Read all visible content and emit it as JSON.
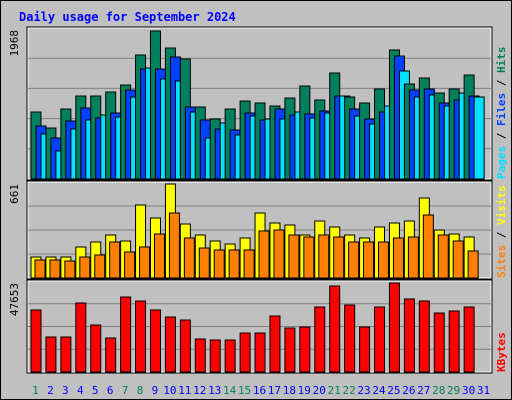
{
  "title": "Daily usage for September 2024",
  "colors": {
    "hits": "#00805c",
    "files": "#0040ff",
    "pages": "#00e0ff",
    "visits": "#ffff00",
    "sites": "#ff8000",
    "kbytes": "#ff0000",
    "weekend_day": "#00805c",
    "weekday": "#0000ff",
    "plot_bg": "#c0c0c0",
    "title": "#0000ff"
  },
  "chart_data": [
    {
      "type": "bar",
      "panel": "hits-files-pages",
      "ymax": 1968,
      "ytick_label": "1968",
      "legend": [
        "Pages",
        "Files",
        "Hits"
      ],
      "categories": [
        "1",
        "2",
        "3",
        "4",
        "5",
        "6",
        "7",
        "8",
        "9",
        "10",
        "11",
        "12",
        "13",
        "14",
        "15",
        "16",
        "17",
        "18",
        "19",
        "20",
        "21",
        "22",
        "23",
        "24",
        "25",
        "26",
        "27",
        "28",
        "29",
        "30"
      ],
      "series": [
        {
          "name": "Hits",
          "values": [
            890,
            680,
            930,
            1090,
            1090,
            1150,
            1240,
            1640,
            1960,
            1730,
            1580,
            950,
            790,
            920,
            1030,
            1010,
            970,
            1070,
            1230,
            1050,
            1400,
            1080,
            1010,
            1190,
            1710,
            1260,
            1330,
            1130,
            1190,
            1380
          ]
        },
        {
          "name": "Files",
          "values": [
            700,
            540,
            760,
            940,
            800,
            870,
            1180,
            1450,
            1450,
            1610,
            950,
            780,
            660,
            650,
            870,
            780,
            920,
            850,
            860,
            900,
            1100,
            920,
            790,
            890,
            1630,
            1170,
            1190,
            1010,
            1040,
            1090
          ]
        },
        {
          "name": "Pages",
          "values": [
            600,
            370,
            660,
            780,
            840,
            820,
            1080,
            1460,
            1320,
            1290,
            890,
            540,
            740,
            580,
            830,
            790,
            790,
            890,
            810,
            870,
            1100,
            830,
            730,
            960,
            1420,
            1080,
            1110,
            960,
            1130,
            1080
          ]
        }
      ]
    },
    {
      "type": "bar",
      "panel": "visits-sites",
      "ymax": 661,
      "ytick_label": "661",
      "legend": [
        "Sites",
        "Visits"
      ],
      "categories": [
        "1",
        "2",
        "3",
        "4",
        "5",
        "6",
        "7",
        "8",
        "9",
        "10",
        "11",
        "12",
        "13",
        "14",
        "15",
        "16",
        "17",
        "18",
        "19",
        "20",
        "21",
        "22",
        "23",
        "24",
        "25",
        "26",
        "27",
        "28",
        "29",
        "30"
      ],
      "series": [
        {
          "name": "Visits",
          "values": [
            150,
            150,
            150,
            220,
            250,
            300,
            260,
            510,
            420,
            660,
            380,
            300,
            260,
            240,
            280,
            460,
            390,
            370,
            300,
            400,
            360,
            300,
            280,
            360,
            390,
            400,
            560,
            340,
            310,
            290
          ]
        },
        {
          "name": "Sites",
          "values": [
            130,
            130,
            120,
            150,
            160,
            250,
            180,
            220,
            310,
            460,
            280,
            210,
            200,
            200,
            200,
            330,
            340,
            300,
            290,
            300,
            290,
            250,
            250,
            250,
            280,
            290,
            440,
            300,
            260,
            190
          ]
        }
      ]
    },
    {
      "type": "bar",
      "panel": "kbytes",
      "ymax": 47653,
      "ytick_label": "47653",
      "legend": [
        "KBytes"
      ],
      "categories": [
        "1",
        "2",
        "3",
        "4",
        "5",
        "6",
        "7",
        "8",
        "9",
        "10",
        "11",
        "12",
        "13",
        "14",
        "15",
        "16",
        "17",
        "18",
        "19",
        "20",
        "21",
        "22",
        "23",
        "24",
        "25",
        "26",
        "27",
        "28",
        "29",
        "30"
      ],
      "series": [
        {
          "name": "KBytes",
          "values": [
            33000,
            18500,
            19000,
            37200,
            25000,
            18000,
            40000,
            38000,
            33000,
            29400,
            27800,
            17700,
            17200,
            17200,
            21000,
            20700,
            29900,
            23700,
            24200,
            34700,
            46000,
            35800,
            24200,
            35000,
            47600,
            38900,
            37800,
            31800,
            32500,
            35000
          ]
        }
      ]
    }
  ],
  "x_axis": {
    "days": [
      "1",
      "2",
      "3",
      "4",
      "5",
      "6",
      "7",
      "8",
      "9",
      "10",
      "11",
      "12",
      "13",
      "14",
      "15",
      "16",
      "17",
      "18",
      "19",
      "20",
      "21",
      "22",
      "23",
      "24",
      "25",
      "26",
      "27",
      "28",
      "29",
      "30",
      "31"
    ],
    "weekend_days": [
      "1",
      "7",
      "8",
      "14",
      "15",
      "21",
      "22",
      "28",
      "29"
    ]
  }
}
